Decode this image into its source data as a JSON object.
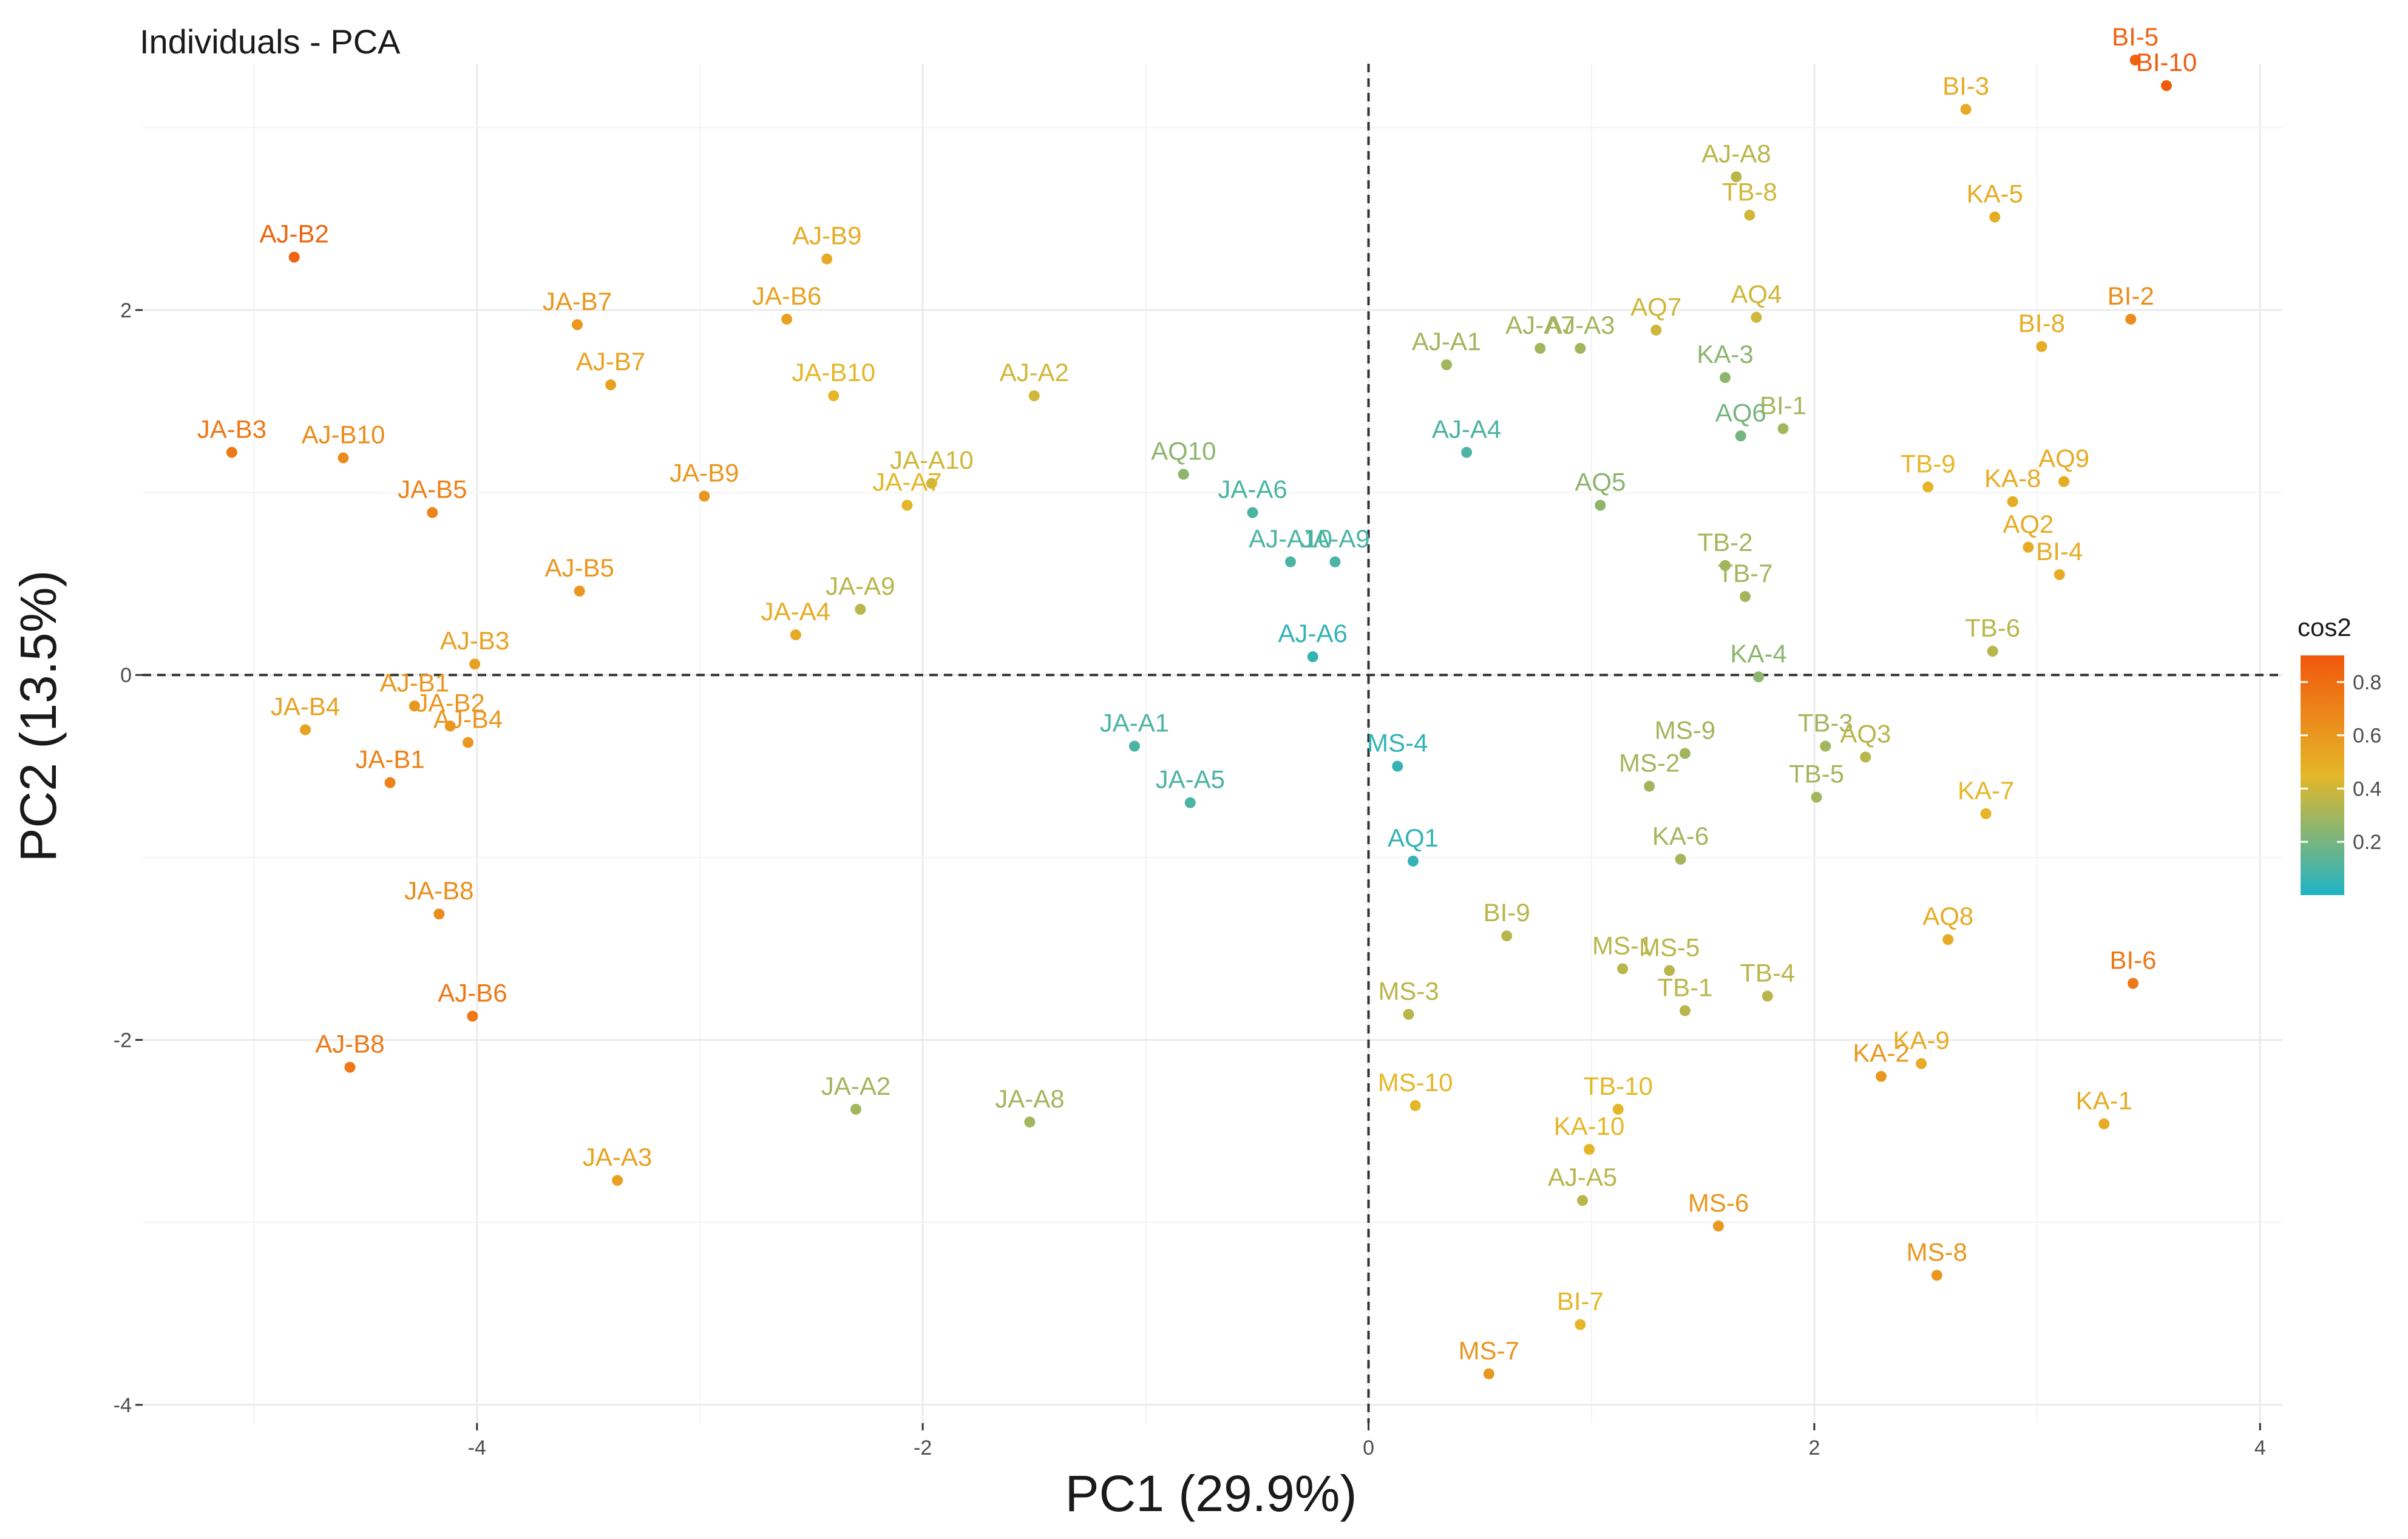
{
  "chart_data": {
    "type": "scatter",
    "title": "Individuals - PCA",
    "xlabel": "PC1 (29.9%)",
    "ylabel": "PC2 (13.5%)",
    "xlim": [
      -5.5,
      4.1
    ],
    "ylim": [
      -4.1,
      3.35
    ],
    "xticks": [
      -4,
      -2,
      0,
      2,
      4
    ],
    "yticks": [
      -4,
      -2,
      0,
      2
    ],
    "grid": true,
    "reference_lines": {
      "x": 0,
      "y": 0,
      "style": "dashed"
    },
    "color_variable": "cos2",
    "legend": {
      "title": "cos2",
      "position": "right",
      "ticks": [
        0.2,
        0.4,
        0.6,
        0.8
      ],
      "range": [
        0.0,
        0.9
      ],
      "colors": [
        "#1fb3c6",
        "#e5b728",
        "#f1580c"
      ]
    },
    "points": [
      {
        "label": "BI-5",
        "x": 3.44,
        "y": 3.37,
        "cos2": 0.85
      },
      {
        "label": "BI-10",
        "x": 3.58,
        "y": 3.23,
        "cos2": 0.88
      },
      {
        "label": "BI-3",
        "x": 2.68,
        "y": 3.1,
        "cos2": 0.5
      },
      {
        "label": "AJ-A8",
        "x": 1.65,
        "y": 2.73,
        "cos2": 0.35
      },
      {
        "label": "TB-8",
        "x": 1.71,
        "y": 2.52,
        "cos2": 0.4
      },
      {
        "label": "KA-5",
        "x": 2.81,
        "y": 2.51,
        "cos2": 0.5
      },
      {
        "label": "AQ4",
        "x": 1.74,
        "y": 1.96,
        "cos2": 0.4
      },
      {
        "label": "BI-2",
        "x": 3.42,
        "y": 1.95,
        "cos2": 0.65
      },
      {
        "label": "AQ7",
        "x": 1.29,
        "y": 1.89,
        "cos2": 0.4
      },
      {
        "label": "BI-8",
        "x": 3.02,
        "y": 1.8,
        "cos2": 0.5
      },
      {
        "label": "AJ-A7",
        "x": 0.77,
        "y": 1.79,
        "cos2": 0.3
      },
      {
        "label": "AJ-A3",
        "x": 0.95,
        "y": 1.79,
        "cos2": 0.3
      },
      {
        "label": "AJ-A1",
        "x": 0.35,
        "y": 1.7,
        "cos2": 0.3
      },
      {
        "label": "KA-3",
        "x": 1.6,
        "y": 1.63,
        "cos2": 0.25
      },
      {
        "label": "BI-1",
        "x": 1.86,
        "y": 1.35,
        "cos2": 0.3
      },
      {
        "label": "AQ6",
        "x": 1.67,
        "y": 1.31,
        "cos2": 0.2
      },
      {
        "label": "AJ-A4",
        "x": 0.44,
        "y": 1.22,
        "cos2": 0.1
      },
      {
        "label": "AQ9",
        "x": 3.12,
        "y": 1.06,
        "cos2": 0.5
      },
      {
        "label": "TB-9",
        "x": 2.51,
        "y": 1.03,
        "cos2": 0.45
      },
      {
        "label": "KA-8",
        "x": 2.89,
        "y": 0.95,
        "cos2": 0.5
      },
      {
        "label": "AQ5",
        "x": 1.04,
        "y": 0.93,
        "cos2": 0.25
      },
      {
        "label": "AQ2",
        "x": 2.96,
        "y": 0.7,
        "cos2": 0.5
      },
      {
        "label": "TB-2",
        "x": 1.6,
        "y": 0.6,
        "cos2": 0.3
      },
      {
        "label": "BI-4",
        "x": 3.1,
        "y": 0.55,
        "cos2": 0.5
      },
      {
        "label": "TB-7",
        "x": 1.69,
        "y": 0.43,
        "cos2": 0.3
      },
      {
        "label": "TB-6",
        "x": 2.8,
        "y": 0.13,
        "cos2": 0.35
      },
      {
        "label": "KA-4",
        "x": 1.75,
        "y": -0.01,
        "cos2": 0.25
      },
      {
        "label": "TB-3",
        "x": 2.05,
        "y": -0.39,
        "cos2": 0.3
      },
      {
        "label": "AQ3",
        "x": 2.23,
        "y": -0.45,
        "cos2": 0.35
      },
      {
        "label": "MS-9",
        "x": 1.42,
        "y": -0.43,
        "cos2": 0.3
      },
      {
        "label": "MS-2",
        "x": 1.26,
        "y": -0.61,
        "cos2": 0.3
      },
      {
        "label": "TB-5",
        "x": 2.01,
        "y": -0.67,
        "cos2": 0.3
      },
      {
        "label": "KA-7",
        "x": 2.77,
        "y": -0.76,
        "cos2": 0.45
      },
      {
        "label": "KA-6",
        "x": 1.4,
        "y": -1.01,
        "cos2": 0.3
      },
      {
        "label": "AQ8",
        "x": 2.6,
        "y": -1.45,
        "cos2": 0.5
      },
      {
        "label": "BI-9",
        "x": 0.62,
        "y": -1.43,
        "cos2": 0.35
      },
      {
        "label": "BI-6",
        "x": 3.43,
        "y": -1.69,
        "cos2": 0.75
      },
      {
        "label": "MS-1",
        "x": 1.14,
        "y": -1.61,
        "cos2": 0.35
      },
      {
        "label": "MS-5",
        "x": 1.35,
        "y": -1.62,
        "cos2": 0.35
      },
      {
        "label": "TB-1",
        "x": 1.42,
        "y": -1.84,
        "cos2": 0.35
      },
      {
        "label": "TB-4",
        "x": 1.79,
        "y": -1.76,
        "cos2": 0.35
      },
      {
        "label": "MS-3",
        "x": 0.18,
        "y": -1.86,
        "cos2": 0.35
      },
      {
        "label": "KA-2",
        "x": 2.3,
        "y": -2.2,
        "cos2": 0.6
      },
      {
        "label": "KA-9",
        "x": 2.48,
        "y": -2.13,
        "cos2": 0.5
      },
      {
        "label": "KA-1",
        "x": 3.3,
        "y": -2.46,
        "cos2": 0.5
      },
      {
        "label": "MS-10",
        "x": 0.21,
        "y": -2.36,
        "cos2": 0.45
      },
      {
        "label": "TB-10",
        "x": 1.12,
        "y": -2.38,
        "cos2": 0.45
      },
      {
        "label": "KA-10",
        "x": 0.99,
        "y": -2.6,
        "cos2": 0.45
      },
      {
        "label": "AJ-A5",
        "x": 0.96,
        "y": -2.88,
        "cos2": 0.35
      },
      {
        "label": "MS-6",
        "x": 1.57,
        "y": -3.02,
        "cos2": 0.6
      },
      {
        "label": "MS-8",
        "x": 2.55,
        "y": -3.29,
        "cos2": 0.6
      },
      {
        "label": "BI-7",
        "x": 0.95,
        "y": -3.56,
        "cos2": 0.45
      },
      {
        "label": "MS-7",
        "x": 0.54,
        "y": -3.83,
        "cos2": 0.6
      },
      {
        "label": "AQ10",
        "x": -0.83,
        "y": 1.1,
        "cos2": 0.25
      },
      {
        "label": "JA-A6",
        "x": -0.52,
        "y": 0.89,
        "cos2": 0.1
      },
      {
        "label": "AJ-A10",
        "x": -0.35,
        "y": 0.62,
        "cos2": 0.1
      },
      {
        "label": "JA-A9",
        "x": -0.15,
        "y": 0.62,
        "cos2": 0.1
      },
      {
        "label": "AJ-A6",
        "x": -0.25,
        "y": 0.1,
        "cos2": 0.05
      },
      {
        "label": "JA-A1",
        "x": -1.05,
        "y": -0.39,
        "cos2": 0.1
      },
      {
        "label": "JA-A5",
        "x": -0.8,
        "y": -0.7,
        "cos2": 0.1
      },
      {
        "label": "MS-4",
        "x": 0.13,
        "y": -0.5,
        "cos2": 0.05
      },
      {
        "label": "AQ1",
        "x": 0.2,
        "y": -1.02,
        "cos2": 0.05
      },
      {
        "label": "JA-A2",
        "x": -2.3,
        "y": -2.38,
        "cos2": 0.3
      },
      {
        "label": "JA-A8",
        "x": -1.52,
        "y": -2.45,
        "cos2": 0.3
      },
      {
        "label": "AJ-A2",
        "x": -1.5,
        "y": 1.53,
        "cos2": 0.4
      },
      {
        "label": "JA-A10",
        "x": -1.96,
        "y": 1.05,
        "cos2": 0.4
      },
      {
        "label": "JA-A7",
        "x": -2.07,
        "y": 0.93,
        "cos2": 0.45
      },
      {
        "label": "JA-A9",
        "x": -2.28,
        "y": 0.36,
        "cos2": 0.35
      },
      {
        "label": "JA-A4",
        "x": -2.57,
        "y": 0.22,
        "cos2": 0.5
      },
      {
        "label": "AJ-B9",
        "x": -2.43,
        "y": 2.28,
        "cos2": 0.5
      },
      {
        "label": "JA-B6",
        "x": -2.61,
        "y": 1.95,
        "cos2": 0.55
      },
      {
        "label": "JA-B10",
        "x": -2.4,
        "y": 1.53,
        "cos2": 0.45
      },
      {
        "label": "JA-B9",
        "x": -2.98,
        "y": 0.98,
        "cos2": 0.6
      },
      {
        "label": "JA-B7",
        "x": -3.55,
        "y": 1.92,
        "cos2": 0.6
      },
      {
        "label": "AJ-B7",
        "x": -3.4,
        "y": 1.59,
        "cos2": 0.55
      },
      {
        "label": "AJ-B5",
        "x": -3.54,
        "y": 0.46,
        "cos2": 0.6
      },
      {
        "label": "AJ-B2",
        "x": -4.82,
        "y": 2.29,
        "cos2": 0.85
      },
      {
        "label": "JA-B3",
        "x": -5.1,
        "y": 1.22,
        "cos2": 0.75
      },
      {
        "label": "AJ-B10",
        "x": -4.6,
        "y": 1.19,
        "cos2": 0.65
      },
      {
        "label": "JA-B5",
        "x": -4.2,
        "y": 0.89,
        "cos2": 0.7
      },
      {
        "label": "AJ-B3",
        "x": -4.01,
        "y": 0.06,
        "cos2": 0.55
      },
      {
        "label": "JA-B4",
        "x": -4.77,
        "y": -0.3,
        "cos2": 0.55
      },
      {
        "label": "AJ-B1",
        "x": -4.28,
        "y": -0.17,
        "cos2": 0.6
      },
      {
        "label": "JA-B2",
        "x": -4.12,
        "y": -0.28,
        "cos2": 0.6
      },
      {
        "label": "AJ-B4",
        "x": -4.04,
        "y": -0.37,
        "cos2": 0.6
      },
      {
        "label": "JA-B1",
        "x": -4.39,
        "y": -0.59,
        "cos2": 0.7
      },
      {
        "label": "JA-B8",
        "x": -4.17,
        "y": -1.31,
        "cos2": 0.65
      },
      {
        "label": "AJ-B6",
        "x": -4.02,
        "y": -1.87,
        "cos2": 0.75
      },
      {
        "label": "AJ-B8",
        "x": -4.57,
        "y": -2.15,
        "cos2": 0.75
      },
      {
        "label": "JA-A3",
        "x": -3.37,
        "y": -2.77,
        "cos2": 0.55
      }
    ]
  }
}
